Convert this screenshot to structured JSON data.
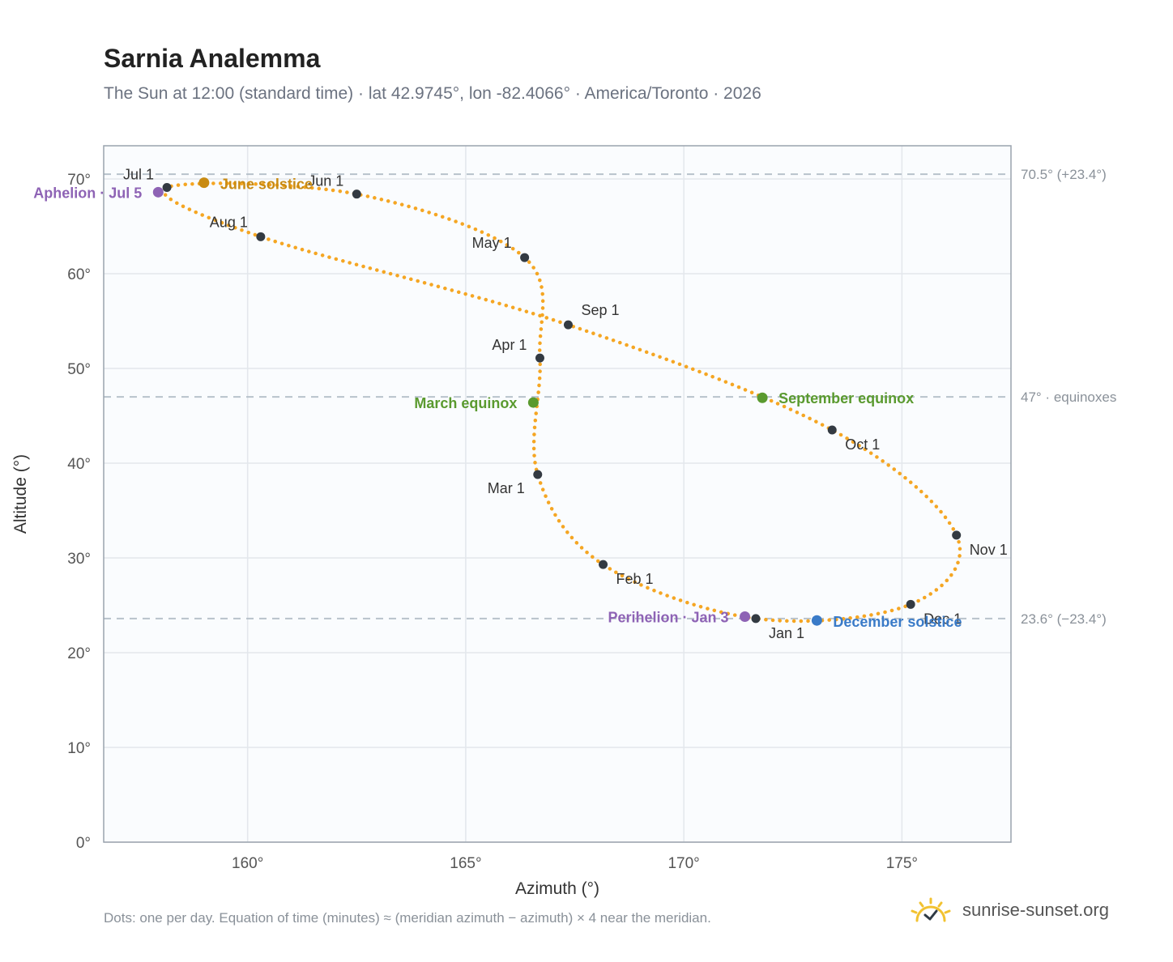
{
  "page": {
    "title": "Sarnia Analemma",
    "subtitle": "The Sun at 12:00 (standard time) · lat 42.9745°, lon -82.4066° · America/Toronto · 2026",
    "footnote": "Dots: one per day. Equation of time (minutes) ≈ (meridian azimuth − azimuth) × 4 near the meridian.",
    "brand": "sunrise-sunset.org",
    "brand_icon": "sun-logo-icon"
  },
  "chart_data": {
    "type": "scatter",
    "xlabel": "Azimuth (°)",
    "ylabel": "Altitude (°)",
    "xlim": [
      156.7,
      177.5
    ],
    "ylim": [
      0,
      73.5
    ],
    "x_ticks": [
      {
        "value": 160,
        "label": "160°"
      },
      {
        "value": 165,
        "label": "165°"
      },
      {
        "value": 170,
        "label": "170°"
      },
      {
        "value": 175,
        "label": "175°"
      }
    ],
    "y_ticks": [
      {
        "value": 0,
        "label": "0°"
      },
      {
        "value": 10,
        "label": "10°"
      },
      {
        "value": 20,
        "label": "20°"
      },
      {
        "value": 30,
        "label": "30°"
      },
      {
        "value": 40,
        "label": "40°"
      },
      {
        "value": 50,
        "label": "50°"
      },
      {
        "value": 60,
        "label": "60°"
      },
      {
        "value": 70,
        "label": "70°"
      }
    ],
    "grid": true,
    "reference_lines": [
      {
        "y": 70.5,
        "label": "70.5° (+23.4°)"
      },
      {
        "y": 47.0,
        "label": "47° · equinoxes"
      },
      {
        "y": 23.6,
        "label": "23.6° (−23.4°)"
      }
    ],
    "path_color": "#f5a623",
    "month_points": [
      {
        "label": "Jan 1",
        "x": 171.65,
        "y": 23.6
      },
      {
        "label": "Feb 1",
        "x": 168.15,
        "y": 29.3
      },
      {
        "label": "Mar 1",
        "x": 166.65,
        "y": 38.8
      },
      {
        "label": "Apr 1",
        "x": 166.7,
        "y": 51.1
      },
      {
        "label": "May 1",
        "x": 166.35,
        "y": 61.7
      },
      {
        "label": "Jun 1",
        "x": 162.5,
        "y": 68.4
      },
      {
        "label": "Jul 1",
        "x": 158.15,
        "y": 69.1
      },
      {
        "label": "Aug 1",
        "x": 160.3,
        "y": 63.9
      },
      {
        "label": "Sep 1",
        "x": 167.35,
        "y": 54.6
      },
      {
        "label": "Oct 1",
        "x": 173.4,
        "y": 43.5
      },
      {
        "label": "Nov 1",
        "x": 176.25,
        "y": 32.4
      },
      {
        "label": "Dec 1",
        "x": 175.2,
        "y": 25.1
      }
    ],
    "events": [
      {
        "label": "Aphelion · Jul 5",
        "x": 157.95,
        "y": 68.6,
        "color": "#8e63b5"
      },
      {
        "label": "June solstice",
        "x": 159.0,
        "y": 69.6,
        "color": "#c98b12"
      },
      {
        "label": "March equinox",
        "x": 166.55,
        "y": 46.4,
        "color": "#5a9a2f"
      },
      {
        "label": "September equinox",
        "x": 171.8,
        "y": 46.9,
        "color": "#5a9a2f"
      },
      {
        "label": "Perihelion · Jan 3",
        "x": 171.4,
        "y": 23.8,
        "color": "#8e63b5"
      },
      {
        "label": "December solstice",
        "x": 173.05,
        "y": 23.4,
        "color": "#3a7bc8"
      }
    ]
  }
}
